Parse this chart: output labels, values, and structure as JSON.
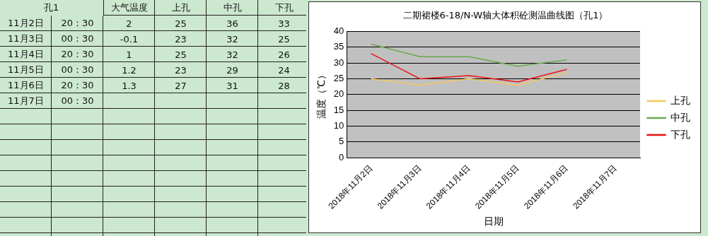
{
  "chart_data": [
    {
      "type": "other",
      "categories": [
        "孔1",
        "大气温度",
        "上孔",
        "中孔",
        "下孔"
      ],
      "annotations": [
        "11月2日",
        "20：30",
        "2",
        "25",
        "36",
        "33",
        "11月3日",
        "00：30",
        "-0.1",
        "23",
        "32",
        "25",
        "11月4日",
        "20：30",
        "1",
        "25",
        "32",
        "26",
        "11月5日",
        "00：30",
        "1.2",
        "23",
        "29",
        "24",
        "11月6日",
        "20：30",
        "1.3",
        "27",
        "31",
        "28",
        "11月7日",
        "00：30",
        null,
        null,
        null,
        null
      ]
    },
    {
      "type": "line",
      "title": "二期裙楼6-18/N-W轴大体积砼测温曲线图（孔1）",
      "xlabel": "日期",
      "ylabel": "温度（℃）",
      "categories": [
        "2018年11月2日",
        "2018年11月3日",
        "2018年11月4日",
        "2018年11月5日",
        "2018年11月6日",
        "2018年11月7日"
      ],
      "series": [
        {
          "name": "上孔",
          "color": "#f6c75e",
          "values": [
            25,
            23,
            25,
            23,
            27,
            null
          ]
        },
        {
          "name": "中孔",
          "color": "#6aa84f",
          "values": [
            36,
            32,
            32,
            29,
            31,
            null
          ]
        },
        {
          "name": "下孔",
          "color": "#ee1111",
          "values": [
            33,
            25,
            26,
            24,
            28,
            null
          ]
        }
      ],
      "ylim": [
        0,
        40
      ],
      "yticks": [
        0,
        5,
        10,
        15,
        20,
        25,
        30,
        35,
        40
      ],
      "grid": "y",
      "legend": "right",
      "marker": "none",
      "line_style": "solid"
    }
  ]
}
